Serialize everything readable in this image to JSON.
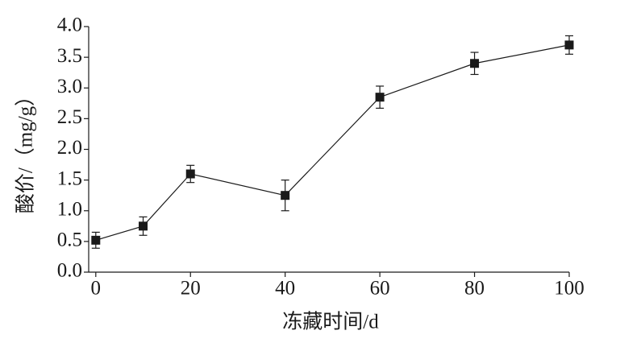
{
  "chart_data": {
    "type": "line",
    "x_label": "冻藏时间/d",
    "y_label": "酸价/（mg/g）",
    "x": [
      0,
      10,
      20,
      40,
      60,
      80,
      100
    ],
    "series": [
      {
        "values": [
          0.52,
          0.75,
          1.6,
          1.25,
          2.85,
          3.4,
          3.7
        ],
        "errors": [
          0.13,
          0.15,
          0.14,
          0.25,
          0.18,
          0.18,
          0.15
        ],
        "color": "#1a1a1a"
      }
    ],
    "xlim": [
      -1.5,
      100
    ],
    "xticks": [
      0,
      20,
      40,
      60,
      80,
      100
    ],
    "ylim": [
      0,
      4
    ],
    "yticks": [
      {
        "value": 0,
        "label": "0.0"
      },
      {
        "value": 0.5,
        "label": "0.5"
      },
      {
        "value": 1,
        "label": "1.0"
      },
      {
        "value": 1.5,
        "label": "1.5"
      },
      {
        "value": 2,
        "label": "2.0"
      },
      {
        "value": 2.5,
        "label": "2.5"
      },
      {
        "value": 3,
        "label": "3.0"
      },
      {
        "value": 3.5,
        "label": "3.5"
      },
      {
        "value": 4,
        "label": "4.0"
      }
    ]
  }
}
